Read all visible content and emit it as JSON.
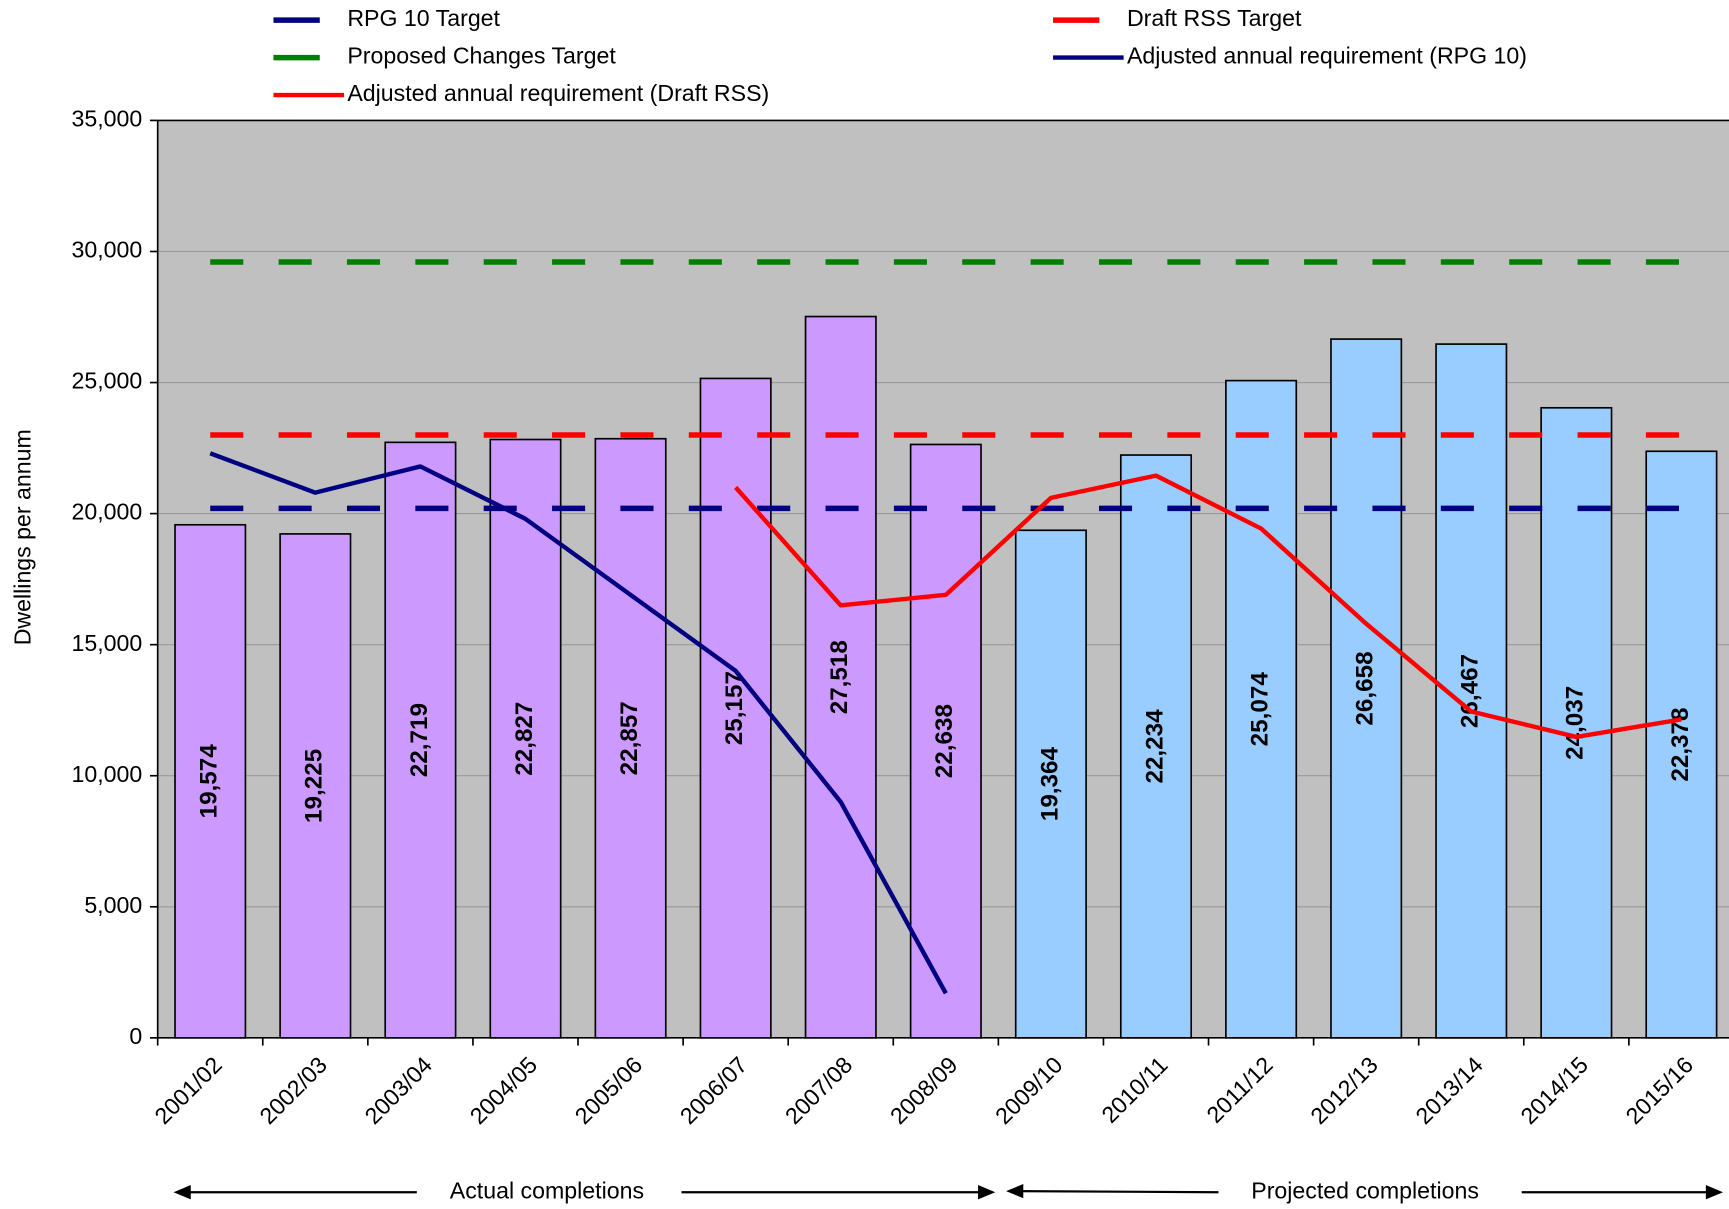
{
  "chart_data": {
    "type": "bar",
    "y_axis_label": "Dwellings per annum",
    "categories": [
      "2001/02",
      "2002/03",
      "2003/04",
      "2004/05",
      "2005/06",
      "2006/07",
      "2007/08",
      "2008/09",
      "2009/10",
      "2010/11",
      "2011/12",
      "2012/13",
      "2013/14",
      "2014/15",
      "2015/16"
    ],
    "values": [
      19574,
      19225,
      22719,
      22827,
      22857,
      25157,
      27518,
      22638,
      19364,
      22234,
      25074,
      26658,
      26467,
      24037,
      22378
    ],
    "value_labels": [
      "19,574",
      "19,225",
      "22,719",
      "22,827",
      "22,857",
      "25,157",
      "27,518",
      "22,638",
      "19,364",
      "22,234",
      "25,074",
      "26,658",
      "26,467",
      "24,037",
      "22,378"
    ],
    "colors": [
      "#cc99ff",
      "#cc99ff",
      "#cc99ff",
      "#cc99ff",
      "#cc99ff",
      "#cc99ff",
      "#cc99ff",
      "#cc99ff",
      "#99ccff",
      "#99ccff",
      "#99ccff",
      "#99ccff",
      "#99ccff",
      "#99ccff",
      "#99ccff"
    ],
    "series": [
      {
        "name": "RPG 10 Target",
        "color": "#000080",
        "dashed": true,
        "values": [
          20200,
          20200,
          20200,
          20200,
          20200,
          20200,
          20200,
          20200,
          20200,
          20200,
          20200,
          20200,
          20200,
          20200,
          20200
        ]
      },
      {
        "name": "Draft RSS Target",
        "color": "#ff0000",
        "dashed": true,
        "values": [
          23000,
          23000,
          23000,
          23000,
          23000,
          23000,
          23000,
          23000,
          23000,
          23000,
          23000,
          23000,
          23000,
          23000,
          23000
        ]
      },
      {
        "name": "Proposed Changes Target",
        "color": "#008000",
        "dashed": true,
        "values": [
          29600,
          29600,
          29600,
          29600,
          29600,
          29600,
          29600,
          29600,
          29600,
          29600,
          29600,
          29600,
          29600,
          29600,
          29600
        ]
      },
      {
        "name": "Adjusted annual requirement (RPG 10)",
        "color": "#000080",
        "dashed": false,
        "values": [
          22300,
          20800,
          21800,
          19800,
          16900,
          14000,
          9000,
          1700,
          null,
          null,
          null,
          null,
          null,
          null,
          null
        ]
      },
      {
        "name": "Adjusted annual requirement (Draft RSS)",
        "color": "#ff0000",
        "dashed": false,
        "values": [
          null,
          null,
          null,
          null,
          null,
          21000,
          16500,
          16900,
          20600,
          21450,
          19430,
          15800,
          12450,
          11480,
          12150
        ]
      }
    ],
    "ylim": [
      0,
      35000
    ],
    "yticks": [
      0,
      {
        "value": 5000,
        "label": "5,000"
      },
      {
        "value": 10000,
        "label": "10,000"
      },
      {
        "value": 15000,
        "label": "15,000"
      },
      {
        "value": 20000,
        "label": "20,000"
      },
      {
        "value": 25000,
        "label": "25,000"
      },
      {
        "value": 30000,
        "label": "30,000"
      },
      {
        "value": 35000,
        "label": "35,000"
      }
    ],
    "grid": true,
    "annotations": [
      "Actual completions",
      "Projected completions"
    ]
  }
}
